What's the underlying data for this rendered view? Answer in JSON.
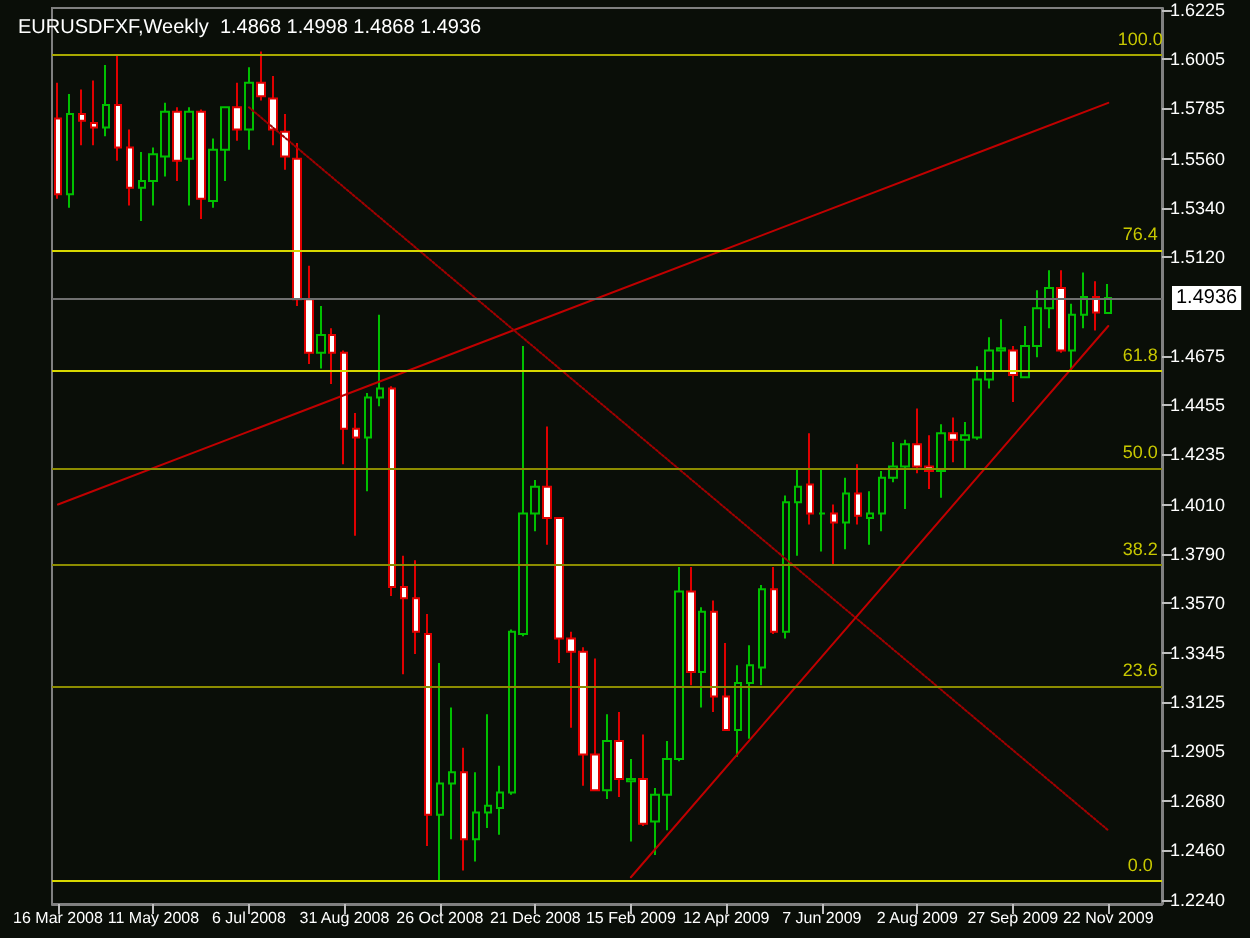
{
  "chart_data": {
    "type": "candlestick",
    "title": "EURUSDFXF,Weekly  1.4868 1.4998 1.4868 1.4936",
    "categories": [
      "16 Mar 2008",
      null,
      null,
      null,
      null,
      null,
      null,
      null,
      "11 May 2008",
      null,
      null,
      null,
      null,
      null,
      null,
      null,
      "6 Jul 2008",
      null,
      null,
      null,
      null,
      null,
      null,
      null,
      "31 Aug 2008",
      null,
      null,
      null,
      null,
      null,
      null,
      null,
      "26 Oct 2008",
      null,
      null,
      null,
      null,
      null,
      null,
      null,
      "21 Dec 2008",
      null,
      null,
      null,
      null,
      null,
      null,
      null,
      "15 Feb 2009",
      null,
      null,
      null,
      null,
      null,
      null,
      null,
      "12 Apr 2009",
      null,
      null,
      null,
      null,
      null,
      null,
      null,
      "7 Jun 2009",
      null,
      null,
      null,
      null,
      null,
      null,
      null,
      "2 Aug 2009",
      null,
      null,
      null,
      null,
      null,
      null,
      null,
      "27 Sep 2009",
      null,
      null,
      null,
      null,
      null,
      null,
      null,
      "22 Nov 2009"
    ],
    "ohlc": [
      [
        1.574,
        1.59,
        1.538,
        1.54
      ],
      [
        1.54,
        1.585,
        1.534,
        1.576
      ],
      [
        1.576,
        1.587,
        1.562,
        1.573
      ],
      [
        1.572,
        1.591,
        1.562,
        1.57
      ],
      [
        1.57,
        1.598,
        1.566,
        1.58
      ],
      [
        1.58,
        1.602,
        1.555,
        1.561
      ],
      [
        1.561,
        1.569,
        1.535,
        1.543
      ],
      [
        1.543,
        1.559,
        1.528,
        1.546
      ],
      [
        1.546,
        1.561,
        1.535,
        1.558
      ],
      [
        1.557,
        1.581,
        1.548,
        1.577
      ],
      [
        1.577,
        1.579,
        1.546,
        1.555
      ],
      [
        1.556,
        1.579,
        1.535,
        1.577
      ],
      [
        1.577,
        1.578,
        1.529,
        1.538
      ],
      [
        1.537,
        1.565,
        1.534,
        1.56
      ],
      [
        1.56,
        1.579,
        1.546,
        1.579
      ],
      [
        1.579,
        1.59,
        1.564,
        1.569
      ],
      [
        1.569,
        1.597,
        1.56,
        1.59
      ],
      [
        1.59,
        1.604,
        1.582,
        1.584
      ],
      [
        1.583,
        1.593,
        1.562,
        1.569
      ],
      [
        1.568,
        1.576,
        1.551,
        1.557
      ],
      [
        1.556,
        1.563,
        1.49,
        1.493
      ],
      [
        1.493,
        1.508,
        1.464,
        1.469
      ],
      [
        1.469,
        1.49,
        1.462,
        1.477
      ],
      [
        1.477,
        1.48,
        1.455,
        1.469
      ],
      [
        1.469,
        1.47,
        1.419,
        1.435
      ],
      [
        1.435,
        1.442,
        1.387,
        1.431
      ],
      [
        1.431,
        1.451,
        1.407,
        1.449
      ],
      [
        1.449,
        1.486,
        1.445,
        1.453
      ],
      [
        1.453,
        1.454,
        1.36,
        1.364
      ],
      [
        1.364,
        1.378,
        1.325,
        1.359
      ],
      [
        1.359,
        1.376,
        1.334,
        1.344
      ],
      [
        1.343,
        1.352,
        1.248,
        1.262
      ],
      [
        1.262,
        1.33,
        1.232,
        1.276
      ],
      [
        1.276,
        1.31,
        1.251,
        1.281
      ],
      [
        1.281,
        1.292,
        1.237,
        1.251
      ],
      [
        1.251,
        1.281,
        1.241,
        1.263
      ],
      [
        1.263,
        1.307,
        1.256,
        1.266
      ],
      [
        1.265,
        1.284,
        1.253,
        1.272
      ],
      [
        1.272,
        1.345,
        1.271,
        1.344
      ],
      [
        1.343,
        1.472,
        1.342,
        1.397
      ],
      [
        1.397,
        1.412,
        1.389,
        1.409
      ],
      [
        1.409,
        1.436,
        1.383,
        1.395
      ],
      [
        1.395,
        1.395,
        1.33,
        1.341
      ],
      [
        1.341,
        1.344,
        1.301,
        1.335
      ],
      [
        1.335,
        1.337,
        1.275,
        1.289
      ],
      [
        1.289,
        1.332,
        1.273,
        1.273
      ],
      [
        1.273,
        1.307,
        1.269,
        1.295
      ],
      [
        1.295,
        1.308,
        1.27,
        1.278
      ],
      [
        1.277,
        1.287,
        1.25,
        1.278
      ],
      [
        1.278,
        1.298,
        1.257,
        1.258
      ],
      [
        1.259,
        1.274,
        1.244,
        1.271
      ],
      [
        1.271,
        1.295,
        1.255,
        1.287
      ],
      [
        1.287,
        1.373,
        1.286,
        1.362
      ],
      [
        1.362,
        1.373,
        1.32,
        1.326
      ],
      [
        1.326,
        1.355,
        1.31,
        1.353
      ],
      [
        1.353,
        1.358,
        1.308,
        1.315
      ],
      [
        1.315,
        1.339,
        1.3,
        1.3
      ],
      [
        1.3,
        1.329,
        1.288,
        1.321
      ],
      [
        1.321,
        1.338,
        1.296,
        1.329
      ],
      [
        1.328,
        1.365,
        1.32,
        1.363
      ],
      [
        1.363,
        1.373,
        1.343,
        1.344
      ],
      [
        1.344,
        1.405,
        1.341,
        1.402
      ],
      [
        1.402,
        1.417,
        1.378,
        1.409
      ],
      [
        1.41,
        1.433,
        1.392,
        1.397
      ],
      [
        1.397,
        1.417,
        1.38,
        1.397
      ],
      [
        1.397,
        1.401,
        1.374,
        1.393
      ],
      [
        1.393,
        1.413,
        1.381,
        1.406
      ],
      [
        1.406,
        1.419,
        1.392,
        1.396
      ],
      [
        1.395,
        1.407,
        1.383,
        1.397
      ],
      [
        1.397,
        1.416,
        1.389,
        1.413
      ],
      [
        1.413,
        1.429,
        1.411,
        1.418
      ],
      [
        1.418,
        1.43,
        1.399,
        1.428
      ],
      [
        1.428,
        1.444,
        1.415,
        1.418
      ],
      [
        1.418,
        1.432,
        1.408,
        1.416
      ],
      [
        1.416,
        1.437,
        1.404,
        1.433
      ],
      [
        1.433,
        1.44,
        1.42,
        1.43
      ],
      [
        1.43,
        1.438,
        1.417,
        1.432
      ],
      [
        1.431,
        1.463,
        1.43,
        1.457
      ],
      [
        1.457,
        1.476,
        1.453,
        1.47
      ],
      [
        1.47,
        1.484,
        1.461,
        1.471
      ],
      [
        1.47,
        1.472,
        1.447,
        1.459
      ],
      [
        1.458,
        1.481,
        1.458,
        1.472
      ],
      [
        1.472,
        1.497,
        1.467,
        1.489
      ],
      [
        1.489,
        1.506,
        1.48,
        1.498
      ],
      [
        1.498,
        1.506,
        1.469,
        1.47
      ],
      [
        1.47,
        1.491,
        1.461,
        1.486
      ],
      [
        1.486,
        1.505,
        1.48,
        1.494
      ],
      [
        1.494,
        1.501,
        1.479,
        1.487
      ],
      [
        1.4868,
        1.4998,
        1.4868,
        1.4936
      ]
    ],
    "series": [
      {
        "type": "line",
        "color": "#c00000",
        "line_style": "solid",
        "x": [
          "16 Mar 2008",
          "22 Nov 2009"
        ],
        "values": [
          1.401,
          1.581
        ]
      },
      {
        "type": "line",
        "color": "#a00000",
        "line_style": "dotted",
        "x": [
          "6 Jul 2008",
          "22 Nov 2009"
        ],
        "values": [
          1.579,
          1.255
        ]
      },
      {
        "type": "line",
        "color": "#c00000",
        "line_style": "solid",
        "x": [
          "15 Feb 2009",
          "22 Nov 2009"
        ],
        "values": [
          1.234,
          1.481
        ]
      }
    ],
    "ylim": [
      1.222,
      1.6235
    ],
    "yticks": [
      1.6225,
      1.6005,
      1.5785,
      {
        "value": 1.556,
        "label": "1.5560"
      },
      {
        "value": 1.534,
        "label": "1.5340"
      },
      {
        "value": 1.512,
        "label": "1.5120"
      },
      1.4675,
      1.4455,
      1.4235,
      {
        "value": 1.401,
        "label": "1.4010"
      },
      {
        "value": 1.379,
        "label": "1.3790"
      },
      {
        "value": 1.357,
        "label": "1.3570"
      },
      1.3345,
      1.3125,
      1.2905,
      {
        "value": 1.268,
        "label": "1.2680"
      },
      {
        "value": 1.246,
        "label": "1.2460"
      },
      {
        "value": 1.224,
        "label": "1.2240"
      }
    ],
    "annotations": [
      {
        "text": "100.0",
        "x": "22 Nov 2009",
        "y": 1.6023
      },
      {
        "text": "76.4",
        "x": "22 Nov 2009",
        "y": 1.515
      },
      {
        "text": "61.8",
        "x": "22 Nov 2009",
        "y": 1.461
      },
      {
        "text": "50.0",
        "x": "22 Nov 2009",
        "y": 1.4174
      },
      {
        "text": "38.2",
        "x": "22 Nov 2009",
        "y": 1.3737
      },
      {
        "text": "23.6",
        "x": "22 Nov 2009",
        "y": 1.3197
      },
      {
        "text": "0.0",
        "x": "22 Nov 2009",
        "y": 1.2324
      }
    ],
    "ref_lines": [
      {
        "axis": "y",
        "value": 1.6023,
        "color": "#a8a800"
      },
      {
        "axis": "y",
        "value": 1.515,
        "color": "#d8d800"
      },
      {
        "axis": "y",
        "value": 1.461,
        "color": "#d8d800"
      },
      {
        "axis": "y",
        "value": 1.4174,
        "color": "#8c8c00"
      },
      {
        "axis": "y",
        "value": 1.3737,
        "color": "#8c8c00"
      },
      {
        "axis": "y",
        "value": 1.3197,
        "color": "#8c8c00"
      },
      {
        "axis": "y",
        "value": 1.2324,
        "color": "#d8d800"
      },
      {
        "axis": "y",
        "value": 1.4936,
        "label": "1.4936",
        "color": "#707070"
      }
    ]
  }
}
